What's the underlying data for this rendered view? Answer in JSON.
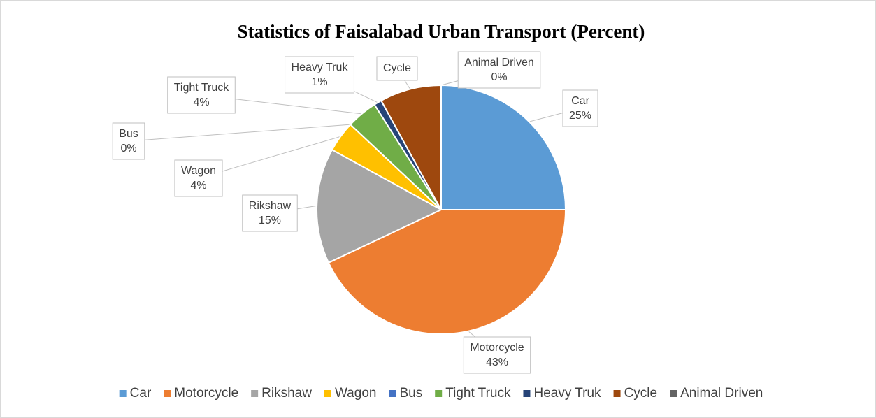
{
  "chart_data": {
    "type": "pie",
    "title": "Statistics of Faisalabad Urban Transport (Percent)",
    "categories": [
      "Car",
      "Motorcycle",
      "Rikshaw",
      "Wagon",
      "Bus",
      "Tight Truck",
      "Heavy Truk",
      "Cycle",
      "Animal Driven"
    ],
    "values": [
      25,
      43,
      15,
      4,
      0,
      4,
      1,
      8,
      0
    ],
    "value_labels": [
      "25%",
      "43%",
      "15%",
      "4%",
      "0%",
      "4%",
      "1%",
      null,
      "0%"
    ],
    "colors": [
      "#5b9bd5",
      "#ed7d31",
      "#a5a5a5",
      "#ffc000",
      "#4472c4",
      "#70ad47",
      "#264478",
      "#9e480e",
      "#636363"
    ],
    "legend": "bottom"
  }
}
